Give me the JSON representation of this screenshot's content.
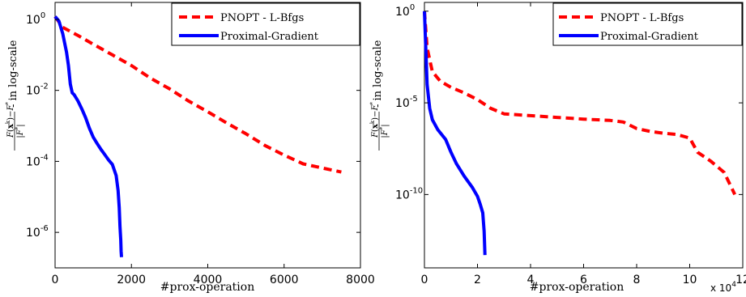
{
  "chart_data": [
    {
      "type": "line",
      "yscale": "log",
      "xlabel": "#prox-operation",
      "ylabel": "F(x^k)−F* / |F*| - in log-scale",
      "xlim": [
        0,
        8000
      ],
      "ylim": [
        1e-07,
        3
      ],
      "x_ticks": [
        "0",
        "2000",
        "4000",
        "6000",
        "8000"
      ],
      "y_ticks": [
        {
          "base": "10",
          "exp": "0"
        },
        {
          "base": "10",
          "exp": "-2"
        },
        {
          "base": "10",
          "exp": "-4"
        },
        {
          "base": "10",
          "exp": "-6"
        }
      ],
      "legend_position": "top-right",
      "series": [
        {
          "name": "PNOPT - L-Bfgs",
          "color": "#ff0000",
          "style": "dashed",
          "x": [
            0,
            200,
            600,
            1000,
            1500,
            2000,
            2500,
            3000,
            3500,
            4000,
            4500,
            5000,
            5500,
            6000,
            6500,
            7000,
            7500
          ],
          "y": [
            1.2,
            0.6,
            0.35,
            0.2,
            0.1,
            0.05,
            0.022,
            0.011,
            0.005,
            0.0025,
            0.0012,
            0.0006,
            0.00028,
            0.00015,
            8.5e-05,
            6.5e-05,
            5e-05
          ]
        },
        {
          "name": "Proximal-Gradient",
          "color": "#0000ff",
          "style": "solid",
          "x": [
            0,
            100,
            200,
            300,
            350,
            400,
            450,
            500,
            600,
            700,
            800,
            900,
            1000,
            1100,
            1200,
            1300,
            1400,
            1500,
            1600,
            1650,
            1680,
            1700,
            1720,
            1730,
            1740
          ],
          "y": [
            1.2,
            0.9,
            0.4,
            0.12,
            0.05,
            0.015,
            0.0085,
            0.0075,
            0.005,
            0.003,
            0.0017,
            0.00085,
            0.00048,
            0.00032,
            0.00022,
            0.000155,
            0.00011,
            8.2e-05,
            4e-05,
            1.5e-05,
            5e-06,
            1.5e-06,
            6e-07,
            3e-07,
            2e-07
          ]
        }
      ]
    },
    {
      "type": "line",
      "yscale": "log",
      "xlabel": "#prox-operation",
      "ylabel": "F(x^k)−F* / |F*| - in log-scale",
      "x_multiplier": {
        "base": "x 10",
        "exp": "4"
      },
      "xlim": [
        0,
        12
      ],
      "ylim": [
        1e-14,
        3
      ],
      "x_ticks": [
        "0",
        "2",
        "4",
        "6",
        "8",
        "10",
        "12"
      ],
      "y_ticks": [
        {
          "base": "10",
          "exp": "0"
        },
        {
          "base": "10",
          "exp": "-5"
        },
        {
          "base": "10",
          "exp": "-10"
        }
      ],
      "legend_position": "top-right",
      "series": [
        {
          "name": "PNOPT - L-Bfgs",
          "color": "#ff0000",
          "style": "dashed",
          "x": [
            0,
            0.1,
            0.3,
            0.6,
            1.0,
            1.5,
            2.0,
            2.5,
            3.0,
            4.0,
            5.0,
            6.0,
            7.0,
            7.5,
            8.0,
            8.5,
            9.0,
            9.5,
            10.0,
            10.3,
            10.8,
            11.3,
            11.7
          ],
          "y": [
            1,
            0.01,
            0.0005,
            0.00015,
            7e-05,
            3.5e-05,
            1.5e-05,
            5e-06,
            2.5e-06,
            2e-06,
            1.6e-06,
            1.3e-06,
            1.1e-06,
            9e-07,
            4e-07,
            2.8e-07,
            2.2e-07,
            1.9e-07,
            1.2e-07,
            2e-08,
            6.5e-09,
            1.6e-09,
            1e-10
          ]
        },
        {
          "name": "Proximal-Gradient",
          "color": "#0000ff",
          "style": "solid",
          "x": [
            0,
            0.1,
            0.2,
            0.3,
            0.5,
            0.8,
            1.0,
            1.2,
            1.5,
            1.8,
            2.0,
            2.1,
            2.2,
            2.25,
            2.28
          ],
          "y": [
            1,
            0.0001,
            5e-06,
            1.2e-06,
            3.5e-07,
            1e-07,
            2e-08,
            5e-09,
            1e-09,
            2.5e-10,
            8e-11,
            3e-11,
            1e-11,
            1e-12,
            5e-14
          ]
        }
      ]
    }
  ]
}
